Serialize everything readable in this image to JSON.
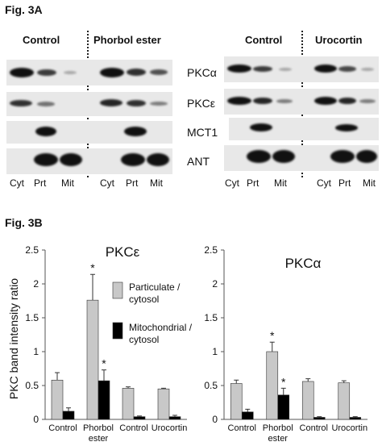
{
  "figure_3a": {
    "label": "Fig. 3A",
    "left_panel": {
      "headers": [
        "Control",
        "Phorbol ester"
      ],
      "lanes": [
        "Cyt",
        "Prt",
        "Mit"
      ],
      "proteins": [
        "PKCα",
        "PKCε",
        "MCT1",
        "ANT"
      ]
    },
    "right_panel": {
      "headers": [
        "Control",
        "Urocortin"
      ],
      "lanes": [
        "Cyt",
        "Prt",
        "Mit"
      ]
    }
  },
  "figure_3b": {
    "label": "Fig. 3B",
    "ylabel": "PKC band intensity ratio",
    "legend": [
      "Particulate / cytosol",
      "Mitochondrial / cytosol"
    ],
    "colors": {
      "particulate": "#c8c8c8",
      "mitochondrial": "#000000"
    }
  },
  "chart_data": [
    {
      "type": "bar",
      "title": "PKCε",
      "ylabel": "PKC band intensity ratio",
      "ylim": [
        0,
        2.5
      ],
      "yticks": [
        "0",
        "0.5",
        "1",
        "1.5",
        "2",
        "2.5"
      ],
      "categories": [
        "Control",
        "Phorbol ester",
        "Control",
        "Urocortin"
      ],
      "series": [
        {
          "name": "Particulate / cytosol",
          "values": [
            0.58,
            1.76,
            0.46,
            0.45
          ],
          "errors": [
            0.11,
            0.38,
            0.02,
            0.01
          ],
          "sig": [
            "",
            "*",
            "",
            ""
          ]
        },
        {
          "name": "Mitochondrial / cytosol",
          "values": [
            0.12,
            0.57,
            0.04,
            0.04
          ],
          "errors": [
            0.05,
            0.16,
            0.01,
            0.02
          ],
          "sig": [
            "",
            "*",
            "",
            ""
          ]
        }
      ],
      "legend_position": "top-right"
    },
    {
      "type": "bar",
      "title": "PKCα",
      "ylim": [
        0,
        2.5
      ],
      "yticks": [
        "0",
        "0.5",
        "1",
        "1.5",
        "2",
        "2.5"
      ],
      "categories": [
        "Control",
        "Phorbol ester",
        "Control",
        "Urocortin"
      ],
      "series": [
        {
          "name": "Particulate / cytosol",
          "values": [
            0.53,
            1.0,
            0.56,
            0.54
          ],
          "errors": [
            0.05,
            0.14,
            0.04,
            0.03
          ],
          "sig": [
            "",
            "*",
            "",
            ""
          ]
        },
        {
          "name": "Mitochondrial / cytosol",
          "values": [
            0.11,
            0.36,
            0.03,
            0.03
          ],
          "errors": [
            0.04,
            0.1,
            0.01,
            0.01
          ],
          "sig": [
            "",
            "*",
            "",
            ""
          ]
        }
      ]
    }
  ]
}
